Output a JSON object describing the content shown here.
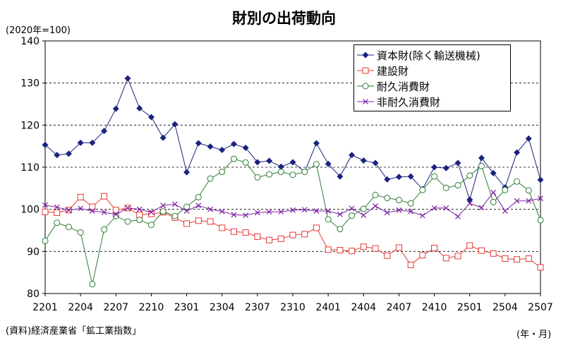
{
  "header": {
    "title": "財別の出荷動向",
    "unit": "(2020年=100)",
    "source": "(資料)経済産業省「鉱工業指数」",
    "period_label": "(年・月)"
  },
  "chart_data": {
    "type": "line",
    "title": "財別の出荷動向",
    "ylabel": "(2020年=100)",
    "xlabel": "(年・月)",
    "ylim": [
      80,
      140
    ],
    "yticks": [
      80,
      90,
      100,
      110,
      120,
      130,
      140
    ],
    "grid": "horizontal-dashed",
    "legend_position": "top-right",
    "x_tick_labels": [
      "2201",
      "2204",
      "2207",
      "2210",
      "2301",
      "2304",
      "2307",
      "2310",
      "2401",
      "2404",
      "2407",
      "2410",
      "2501",
      "2504",
      "2507"
    ],
    "x": [
      "2201",
      "2202",
      "2203",
      "2204",
      "2205",
      "2206",
      "2207",
      "2208",
      "2209",
      "2210",
      "2211",
      "2212",
      "2301",
      "2302",
      "2303",
      "2304",
      "2305",
      "2306",
      "2307",
      "2308",
      "2309",
      "2310",
      "2311",
      "2312",
      "2401",
      "2402",
      "2403",
      "2404",
      "2405",
      "2406",
      "2407",
      "2408",
      "2409",
      "2410",
      "2411",
      "2412",
      "2501",
      "2502",
      "2503",
      "2504",
      "2505",
      "2506",
      "2507"
    ],
    "series": [
      {
        "name": "資本財(除く輸送機械)",
        "color": "#1a237e",
        "marker": "diamond",
        "values": [
          115.3,
          112.9,
          113.2,
          115.8,
          115.8,
          118.6,
          123.9,
          131.1,
          124.0,
          121.9,
          117.0,
          120.2,
          108.8,
          115.7,
          114.9,
          114.1,
          115.5,
          114.6,
          111.2,
          111.5,
          110.1,
          111.2,
          108.9,
          115.7,
          110.8,
          107.8,
          112.9,
          111.6,
          111.0,
          107.1,
          107.7,
          107.8,
          104.8,
          110.0,
          109.8,
          111.0,
          102.3,
          112.2,
          108.6,
          105.2,
          113.5,
          116.8,
          107.0
        ]
      },
      {
        "name": "建設財",
        "color": "#e53935",
        "marker": "square",
        "values": [
          99.4,
          99.2,
          99.8,
          102.9,
          100.6,
          103.1,
          99.8,
          100.3,
          98.7,
          98.9,
          99.3,
          98.0,
          96.6,
          97.3,
          97.1,
          95.6,
          94.7,
          94.5,
          93.5,
          92.7,
          93.0,
          93.9,
          94.1,
          95.6,
          90.4,
          90.3,
          90.1,
          91.1,
          90.7,
          89.0,
          90.9,
          86.8,
          89.1,
          90.8,
          88.4,
          88.9,
          91.4,
          90.2,
          89.5,
          88.3,
          88.1,
          88.3,
          86.2
        ]
      },
      {
        "name": "耐久消費財",
        "color": "#2e7d32",
        "marker": "circle",
        "values": [
          92.5,
          96.8,
          95.8,
          94.5,
          82.2,
          95.2,
          98.4,
          97.1,
          97.5,
          96.3,
          99.5,
          98.4,
          100.6,
          102.9,
          107.3,
          108.9,
          112.0,
          111.1,
          107.6,
          108.3,
          108.9,
          108.2,
          108.9,
          110.7,
          97.6,
          95.3,
          98.5,
          100.1,
          103.4,
          102.7,
          102.2,
          101.4,
          104.6,
          107.8,
          105.1,
          105.7,
          108.0,
          110.3,
          101.7,
          104.6,
          106.6,
          104.5,
          97.4
        ]
      },
      {
        "name": "非耐久消費財",
        "color": "#7b1fa2",
        "marker": "x",
        "values": [
          101.0,
          100.5,
          99.8,
          100.2,
          99.6,
          99.3,
          98.8,
          100.3,
          100.0,
          99.3,
          100.9,
          101.2,
          99.6,
          100.9,
          100.0,
          99.5,
          98.7,
          98.6,
          99.2,
          99.4,
          99.4,
          99.8,
          99.9,
          99.6,
          99.6,
          98.8,
          100.2,
          98.6,
          100.8,
          99.2,
          99.8,
          99.5,
          98.5,
          100.3,
          100.3,
          98.3,
          101.4,
          100.4,
          104.0,
          99.6,
          102.0,
          102.0,
          102.6
        ]
      }
    ]
  }
}
